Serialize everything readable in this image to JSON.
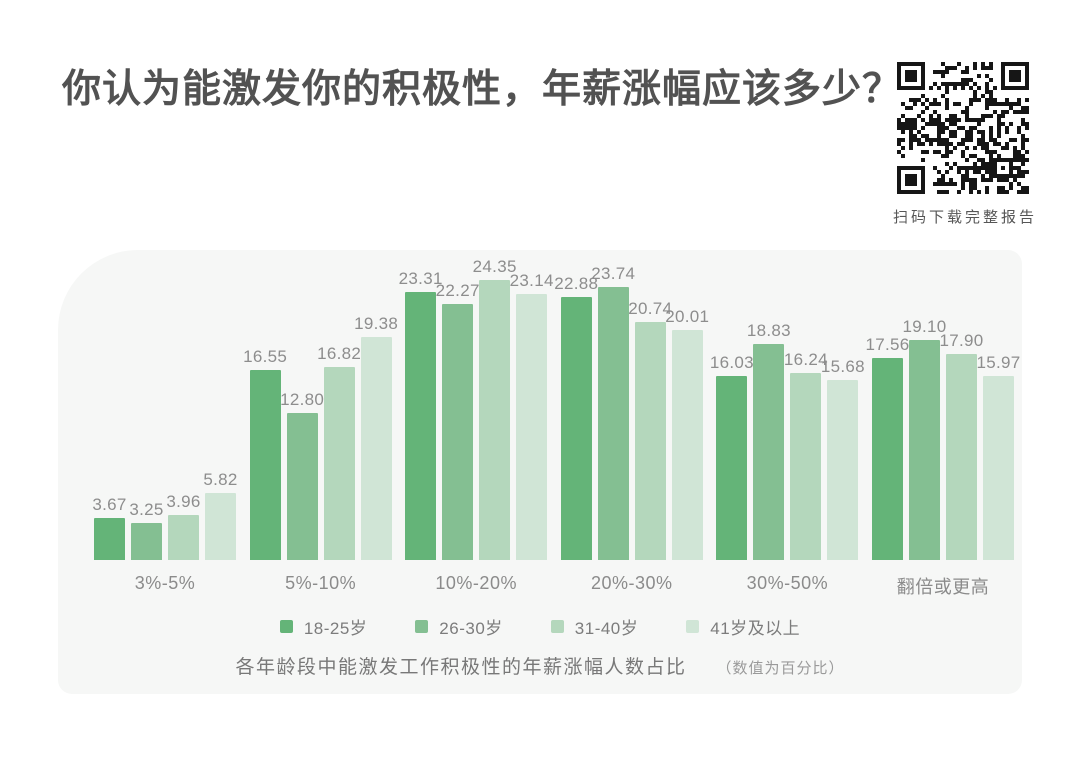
{
  "page": {
    "title": "你认为能激发你的积极性，年薪涨幅应该多少？",
    "qr_caption": "扫码下载完整报告"
  },
  "chart_data": {
    "type": "bar",
    "title": "各年龄段中能激发工作积极性的年薪涨幅人数占比",
    "note": "（数值为百分比）",
    "unit": "percent",
    "categories": [
      "3%-5%",
      "5%-10%",
      "10%-20%",
      "20%-30%",
      "30%-50%",
      "翻倍或更高"
    ],
    "series": [
      {
        "name": "18-25岁",
        "color": "#64b478",
        "values": [
          3.67,
          16.55,
          23.31,
          22.88,
          16.03,
          17.56
        ]
      },
      {
        "name": "26-30岁",
        "color": "#84bf92",
        "values": [
          3.25,
          12.8,
          22.27,
          23.74,
          18.83,
          19.1
        ]
      },
      {
        "name": "31-40岁",
        "color": "#b4d7bc",
        "values": [
          3.96,
          16.82,
          24.35,
          20.74,
          16.24,
          17.9
        ]
      },
      {
        "name": "41岁及以上",
        "color": "#d0e5d6",
        "values": [
          5.82,
          19.38,
          23.14,
          20.01,
          15.68,
          15.97
        ]
      }
    ],
    "value_labels": true,
    "value_decimals": 2,
    "legend_position": "bottom",
    "axes_hidden": true,
    "grid": false,
    "ylim": [
      0,
      26
    ]
  },
  "colors": {
    "panel_background": "#f6f7f6",
    "title_text": "#525252",
    "value_text": "#8d8d8d",
    "category_text": "#8b8b8b",
    "qr_foreground": "#161616"
  }
}
